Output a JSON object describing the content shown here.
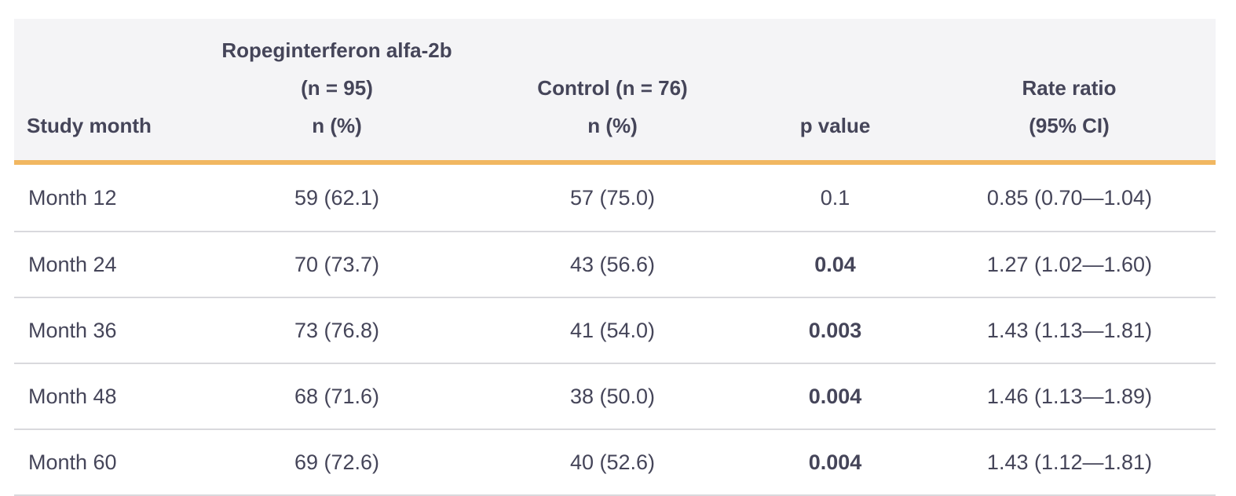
{
  "table": {
    "header": {
      "study_month": "Study month",
      "ropeg_line1": "Ropeginterferon alfa-2b",
      "ropeg_line2": "(n = 95)",
      "ropeg_line3": "n (%)",
      "control_line1": "Control (n = 76)",
      "control_line2": "n (%)",
      "p_value": "p value",
      "rate_line1": "Rate ratio",
      "rate_line2": "(95% CI)"
    },
    "rows": [
      {
        "month": "Month 12",
        "ropeg": "59 (62.1)",
        "control": "57 (75.0)",
        "p": "0.1",
        "p_bold": false,
        "ratio": "0.85 (0.70—1.04)"
      },
      {
        "month": "Month 24",
        "ropeg": "70 (73.7)",
        "control": "43 (56.6)",
        "p": "0.04",
        "p_bold": true,
        "ratio": "1.27 (1.02—1.60)"
      },
      {
        "month": "Month 36",
        "ropeg": "73 (76.8)",
        "control": "41 (54.0)",
        "p": "0.003",
        "p_bold": true,
        "ratio": "1.43 (1.13—1.81)"
      },
      {
        "month": "Month 48",
        "ropeg": "68 (71.6)",
        "control": "38 (50.0)",
        "p": "0.004",
        "p_bold": true,
        "ratio": "1.46 (1.13—1.89)"
      },
      {
        "month": "Month 60",
        "ropeg": "69 (72.6)",
        "control": "40 (52.6)",
        "p": "0.004",
        "p_bold": true,
        "ratio": "1.43 (1.12—1.81)"
      }
    ],
    "colors": {
      "header_bg": "#f4f4f6",
      "header_rule": "#f1b761",
      "row_rule": "#d9d9dd",
      "text": "#454559"
    }
  }
}
